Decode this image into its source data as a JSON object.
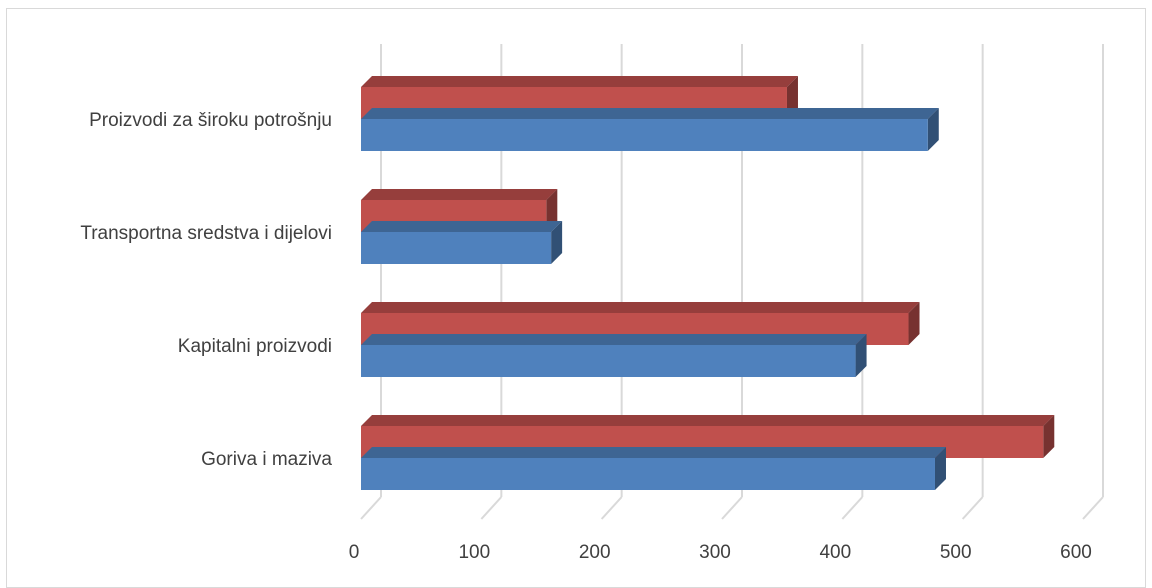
{
  "chart_data": {
    "type": "bar",
    "orientation": "horizontal",
    "style": "3d-clustered",
    "categories": [
      "Goriva i maziva",
      "Kapitalni proizvodi",
      "Transportna sredstva i dijelovi",
      "Proizvodi za široku potrošnju"
    ],
    "series": [
      {
        "values": [
          477,
          411,
          158,
          471
        ],
        "color": "#4f81bd"
      },
      {
        "values": [
          567,
          455,
          154,
          354
        ],
        "color": "#c0504d"
      }
    ],
    "xlim": [
      0,
      600
    ],
    "x_ticks": [
      0,
      100,
      200,
      300,
      400,
      500,
      600
    ],
    "grid": true,
    "legend": "none"
  }
}
